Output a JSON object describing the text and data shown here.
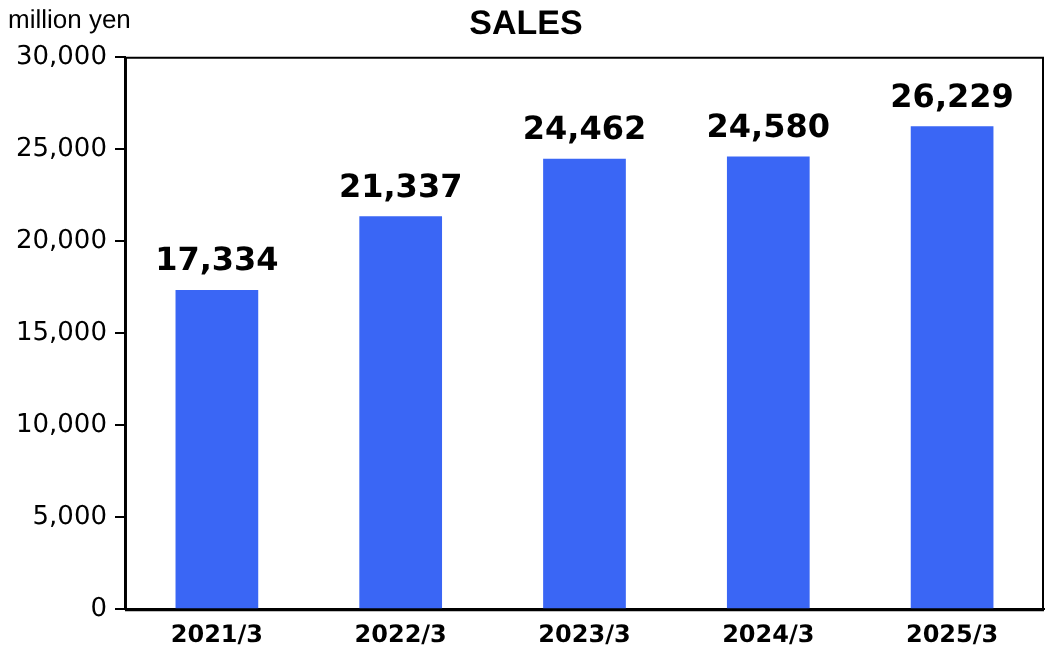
{
  "chart_data": {
    "type": "bar",
    "title": "SALES",
    "ylabel": "million yen",
    "categories": [
      "2021/3",
      "2022/3",
      "2023/3",
      "2024/3",
      "2025/3"
    ],
    "values": [
      17334,
      21337,
      24462,
      24580,
      26229
    ],
    "color": "#3a66f5",
    "ylim": [
      0,
      30000
    ],
    "yticks": [
      {
        "value": 0,
        "label": "0"
      },
      {
        "value": 5000,
        "label": "5,000"
      },
      {
        "value": 10000,
        "label": "10,000"
      },
      {
        "value": 15000,
        "label": "15,000"
      },
      {
        "value": 20000,
        "label": "20,000"
      },
      {
        "value": 25000,
        "label": "25,000"
      },
      {
        "value": 30000,
        "label": "30,000"
      }
    ],
    "value_labels": [
      "17,334",
      "21,337",
      "24,462",
      "24,580",
      "26,229"
    ],
    "grid": false,
    "legend": false
  }
}
